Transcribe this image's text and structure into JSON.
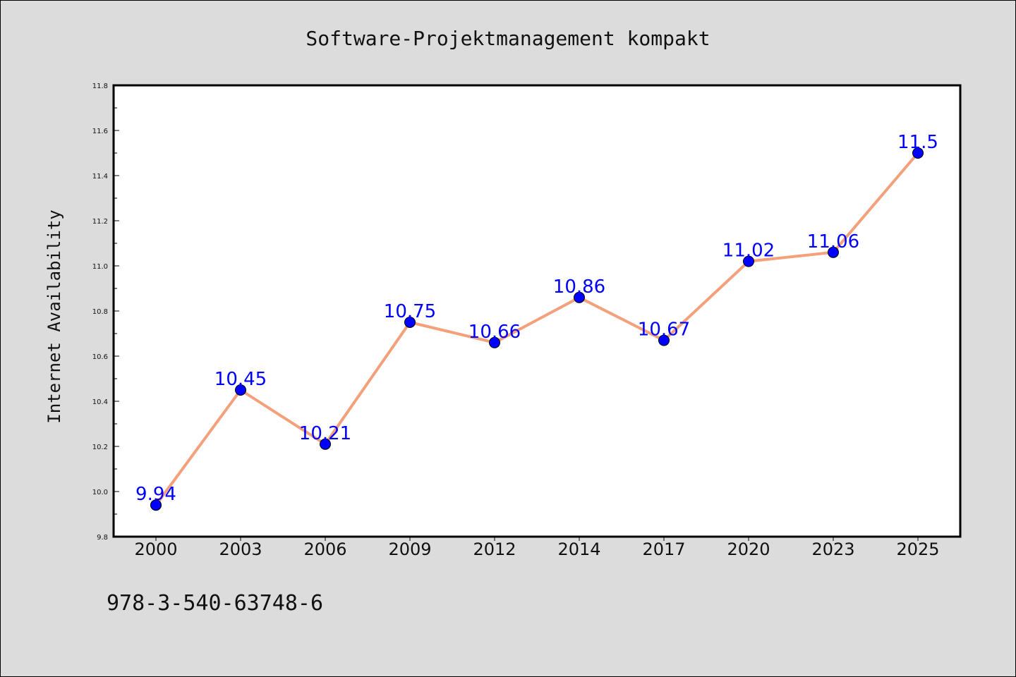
{
  "chart_data": {
    "type": "line",
    "title": "Software-Projektmanagement kompakt",
    "xlabel": "",
    "ylabel": "Internet Availability",
    "categories": [
      "2000",
      "2003",
      "2006",
      "2009",
      "2012",
      "2014",
      "2017",
      "2020",
      "2023",
      "2025"
    ],
    "values": [
      9.94,
      10.45,
      10.21,
      10.75,
      10.66,
      10.86,
      10.67,
      11.02,
      11.06,
      11.5
    ],
    "data_labels": [
      "9.94",
      "10.45",
      "10.21",
      "10.75",
      "10.66",
      "10.86",
      "10.67",
      "11.02",
      "11.06",
      "11.5"
    ],
    "ylim": [
      9.8,
      11.8
    ],
    "yticks": [
      "9.8",
      "10.0",
      "10.2",
      "10.4",
      "10.6",
      "10.8",
      "11.0",
      "11.2",
      "11.4",
      "11.6",
      "11.8"
    ],
    "grid": false,
    "colors": {
      "line": "#f4a07a",
      "marker": "#0000ff",
      "label": "#0000ff",
      "background": "#dcdcdc",
      "plot_background": "#ffffff"
    }
  },
  "footer": {
    "isbn": "978-3-540-63748-6"
  }
}
